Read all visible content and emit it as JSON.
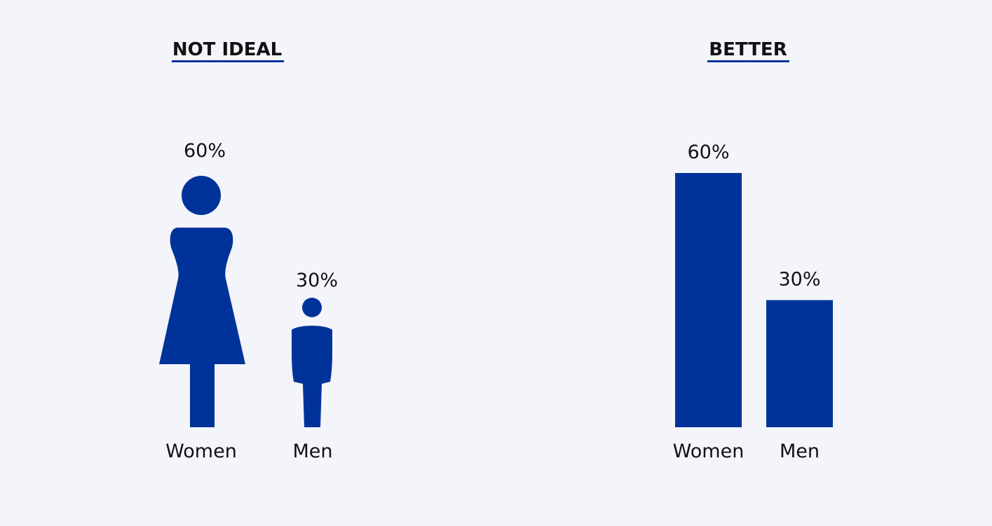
{
  "colors": {
    "background": "#f3f5fa",
    "accent": "#00339a",
    "text": "#111111"
  },
  "chart_data": [
    {
      "type": "pictogram",
      "title": "NOT IDEAL",
      "categories": [
        "Women",
        "Men"
      ],
      "values": [
        60,
        30
      ],
      "value_labels": [
        "60%",
        "30%"
      ],
      "icons": [
        "woman-icon",
        "man-icon"
      ],
      "ylim": [
        0,
        60
      ]
    },
    {
      "type": "bar",
      "title": "BETTER",
      "categories": [
        "Women",
        "Men"
      ],
      "values": [
        60,
        30
      ],
      "value_labels": [
        "60%",
        "30%"
      ],
      "ylim": [
        0,
        60
      ]
    }
  ]
}
